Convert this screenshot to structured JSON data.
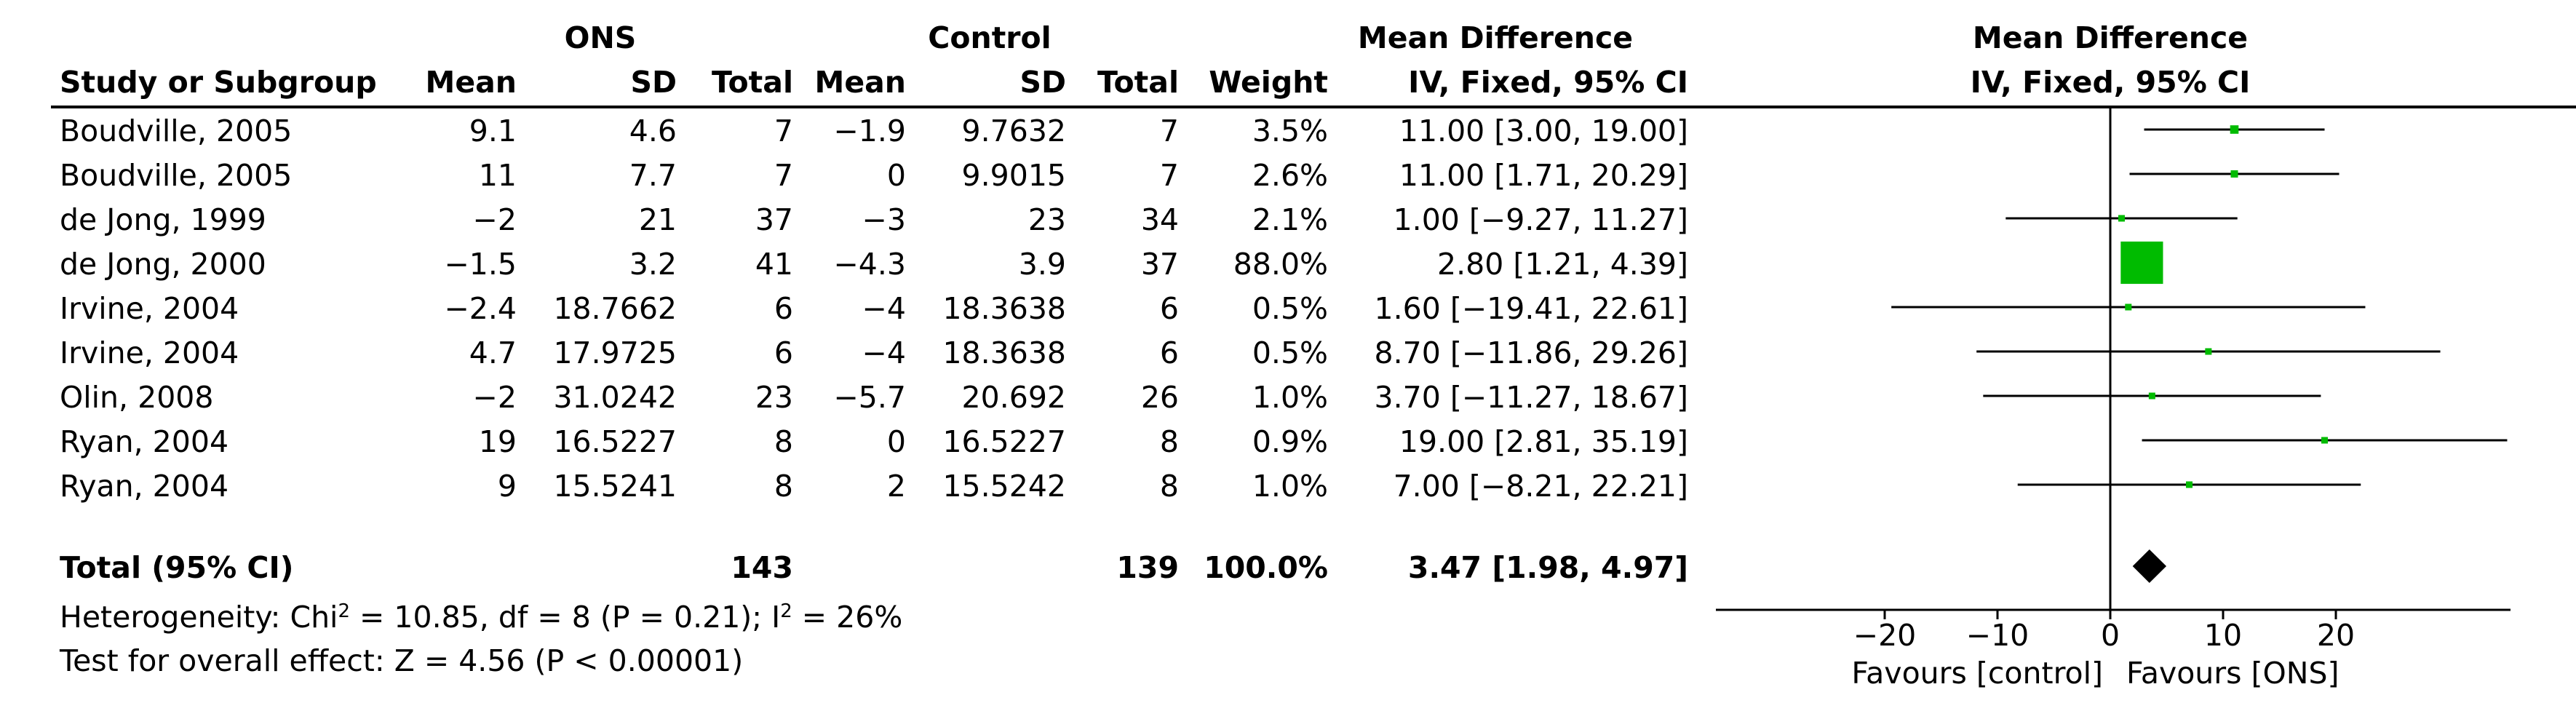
{
  "table": {
    "group_headers": {
      "experimental": "ONS",
      "control": "Control",
      "effect": "Mean Difference",
      "plot": "Mean Difference"
    },
    "col_headers": {
      "study": "Study or Subgroup",
      "mean1": "Mean",
      "sd1": "SD",
      "total1": "Total",
      "mean2": "Mean",
      "sd2": "SD",
      "total2": "Total",
      "weight": "Weight",
      "effect": "IV, Fixed, 95% CI",
      "plot": "IV, Fixed, 95% CI"
    },
    "rows": [
      {
        "study": "Boudville, 2005",
        "mean1": "9.1",
        "sd1": "4.6",
        "total1": "7",
        "mean2": "−1.9",
        "sd2": "9.7632",
        "total2": "7",
        "weight": "3.5%",
        "effect": "11.00 [3.00, 19.00]"
      },
      {
        "study": "Boudville, 2005",
        "mean1": "11",
        "sd1": "7.7",
        "total1": "7",
        "mean2": "0",
        "sd2": "9.9015",
        "total2": "7",
        "weight": "2.6%",
        "effect": "11.00 [1.71, 20.29]"
      },
      {
        "study": "de Jong, 1999",
        "mean1": "−2",
        "sd1": "21",
        "total1": "37",
        "mean2": "−3",
        "sd2": "23",
        "total2": "34",
        "weight": "2.1%",
        "effect": "1.00 [−9.27, 11.27]"
      },
      {
        "study": "de Jong, 2000",
        "mean1": "−1.5",
        "sd1": "3.2",
        "total1": "41",
        "mean2": "−4.3",
        "sd2": "3.9",
        "total2": "37",
        "weight": "88.0%",
        "effect": "2.80 [1.21, 4.39]"
      },
      {
        "study": "Irvine, 2004",
        "mean1": "−2.4",
        "sd1": "18.7662",
        "total1": "6",
        "mean2": "−4",
        "sd2": "18.3638",
        "total2": "6",
        "weight": "0.5%",
        "effect": "1.60 [−19.41, 22.61]"
      },
      {
        "study": "Irvine, 2004",
        "mean1": "4.7",
        "sd1": "17.9725",
        "total1": "6",
        "mean2": "−4",
        "sd2": "18.3638",
        "total2": "6",
        "weight": "0.5%",
        "effect": "8.70 [−11.86, 29.26]"
      },
      {
        "study": "Olin, 2008",
        "mean1": "−2",
        "sd1": "31.0242",
        "total1": "23",
        "mean2": "−5.7",
        "sd2": "20.692",
        "total2": "26",
        "weight": "1.0%",
        "effect": "3.70 [−11.27, 18.67]"
      },
      {
        "study": "Ryan, 2004",
        "mean1": "19",
        "sd1": "16.5227",
        "total1": "8",
        "mean2": "0",
        "sd2": "16.5227",
        "total2": "8",
        "weight": "0.9%",
        "effect": "19.00 [2.81, 35.19]"
      },
      {
        "study": "Ryan, 2004",
        "mean1": "9",
        "sd1": "15.5241",
        "total1": "8",
        "mean2": "2",
        "sd2": "15.5242",
        "total2": "8",
        "weight": "1.0%",
        "effect": "7.00 [−8.21, 22.21]"
      }
    ],
    "total": {
      "label": "Total (95% CI)",
      "total1": "143",
      "total2": "139",
      "weight": "100.0%",
      "effect": "3.47 [1.98, 4.97]"
    },
    "heterogeneity": {
      "prefix": "Heterogeneity: Chi",
      "sup1": "2",
      "middle": " = 10.85, df = 8 (P = 0.21); I",
      "sup2": "2",
      "suffix": " = 26%"
    },
    "overall_effect": "Test for overall effect: Z = 4.56 (P < 0.00001)",
    "favours_left": "Favours [control]",
    "favours_right": "Favours [ONS]"
  },
  "chart_data": {
    "type": "forest",
    "x_label_left": "Favours [control]",
    "x_label_right": "Favours [ONS]",
    "xlim": [
      -20,
      35
    ],
    "x_ticks": [
      -20,
      -10,
      0,
      10,
      20
    ],
    "tick_labels": [
      "−20",
      "−10",
      "0",
      "10",
      "20"
    ],
    "colors": {
      "square": "#00bb00",
      "line": "#000000",
      "diamond": "#000000"
    },
    "studies": [
      {
        "label": "Boudville, 2005",
        "estimate": 11.0,
        "lower": 3.0,
        "upper": 19.0,
        "weight": 3.5
      },
      {
        "label": "Boudville, 2005",
        "estimate": 11.0,
        "lower": 1.71,
        "upper": 20.29,
        "weight": 2.6
      },
      {
        "label": "de Jong, 1999",
        "estimate": 1.0,
        "lower": -9.27,
        "upper": 11.27,
        "weight": 2.1
      },
      {
        "label": "de Jong, 2000",
        "estimate": 2.8,
        "lower": 1.21,
        "upper": 4.39,
        "weight": 88.0
      },
      {
        "label": "Irvine, 2004",
        "estimate": 1.6,
        "lower": -19.41,
        "upper": 22.61,
        "weight": 0.5
      },
      {
        "label": "Irvine, 2004",
        "estimate": 8.7,
        "lower": -11.86,
        "upper": 29.26,
        "weight": 0.5
      },
      {
        "label": "Olin, 2008",
        "estimate": 3.7,
        "lower": -11.27,
        "upper": 18.67,
        "weight": 1.0
      },
      {
        "label": "Ryan, 2004",
        "estimate": 19.0,
        "lower": 2.81,
        "upper": 35.19,
        "weight": 0.9
      },
      {
        "label": "Ryan, 2004",
        "estimate": 7.0,
        "lower": -8.21,
        "upper": 22.21,
        "weight": 1.0
      }
    ],
    "pooled": {
      "estimate": 3.47,
      "lower": 1.98,
      "upper": 4.97
    }
  }
}
